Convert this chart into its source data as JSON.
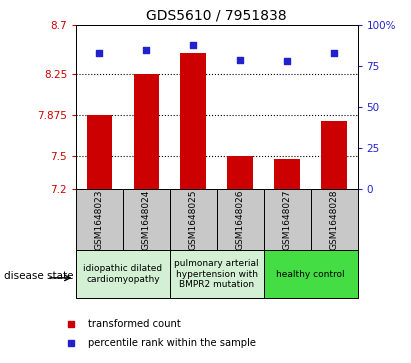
{
  "title": "GDS5610 / 7951838",
  "samples": [
    "GSM1648023",
    "GSM1648024",
    "GSM1648025",
    "GSM1648026",
    "GSM1648027",
    "GSM1648028"
  ],
  "bar_values": [
    7.875,
    8.25,
    8.45,
    7.5,
    7.47,
    7.82
  ],
  "dot_values": [
    83,
    85,
    88,
    79,
    78,
    83
  ],
  "ylim_left": [
    7.2,
    8.7
  ],
  "ylim_right": [
    0,
    100
  ],
  "yticks_left": [
    7.2,
    7.5,
    7.875,
    8.25,
    8.7
  ],
  "ytick_labels_left": [
    "7.2",
    "7.5",
    "7.875",
    "8.25",
    "8.7"
  ],
  "yticks_right": [
    0,
    25,
    50,
    75,
    100
  ],
  "ytick_labels_right": [
    "0",
    "25",
    "50",
    "75",
    "100%"
  ],
  "hlines": [
    7.5,
    7.875,
    8.25
  ],
  "bar_color": "#cc0000",
  "dot_color": "#2222cc",
  "bar_bottom": 7.2,
  "group_defs": [
    {
      "start": 0,
      "end": 2,
      "label": "idiopathic dilated\ncardiomyopathy",
      "color": "#d4f0d4"
    },
    {
      "start": 2,
      "end": 4,
      "label": "pulmonary arterial\nhypertension with\nBMPR2 mutation",
      "color": "#d4f0d4"
    },
    {
      "start": 4,
      "end": 6,
      "label": "healthy control",
      "color": "#44dd44"
    }
  ],
  "legend_labels": [
    "transformed count",
    "percentile rank within the sample"
  ],
  "legend_colors": [
    "#cc0000",
    "#2222cc"
  ],
  "disease_state_label": "disease state",
  "left_color": "#cc0000",
  "right_color": "#2222cc",
  "sample_box_color": "#c8c8c8",
  "title_fontsize": 10
}
